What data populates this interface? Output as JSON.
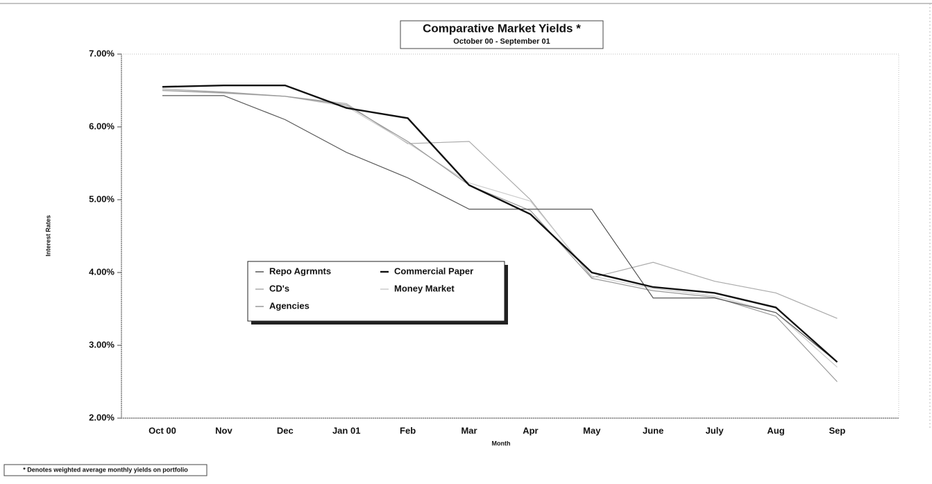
{
  "chart_data": {
    "type": "line",
    "title": "Comparative  Market Yields *",
    "subtitle": "October 00 - September 01",
    "y_label": "Interest Rates",
    "x_label": "Month",
    "footnote": "* Denotes weighted average monthly yields on portfolio",
    "categories": [
      "Oct 00",
      "Nov",
      "Dec",
      "Jan 01",
      "Feb",
      "Mar",
      "Apr",
      "May",
      "June",
      "July",
      "Aug",
      "Sep"
    ],
    "series": [
      {
        "name": "Repo Agrmnts",
        "color": "#555555",
        "values": [
          6.43,
          6.43,
          6.1,
          5.65,
          5.3,
          4.87,
          4.87,
          4.87,
          3.65,
          3.65,
          3.45,
          2.77
        ]
      },
      {
        "name": "Commercial Paper",
        "color": "#111111",
        "values": [
          6.55,
          6.57,
          6.57,
          6.26,
          6.12,
          5.2,
          4.8,
          4.0,
          3.8,
          3.72,
          3.52,
          2.77
        ]
      },
      {
        "name": "CD's",
        "color": "#aaaaaa",
        "values": [
          6.52,
          6.48,
          6.42,
          6.32,
          5.77,
          5.8,
          5.0,
          3.93,
          4.14,
          3.88,
          3.72,
          3.37
        ]
      },
      {
        "name": "Money Market",
        "color": "#cccccc",
        "values": [
          6.5,
          6.46,
          6.42,
          6.28,
          5.78,
          5.23,
          4.98,
          3.95,
          3.78,
          3.68,
          3.45,
          2.7
        ]
      },
      {
        "name": "Agencies",
        "color": "#999999",
        "values": [
          6.5,
          6.47,
          6.42,
          6.3,
          5.8,
          5.2,
          4.85,
          3.92,
          3.75,
          3.66,
          3.4,
          2.5
        ]
      }
    ],
    "ylim": [
      2,
      7
    ],
    "yticks": [
      {
        "value": 2,
        "label": "2.00%"
      },
      {
        "value": 3,
        "label": "3.00%"
      },
      {
        "value": 4,
        "label": "4.00%"
      },
      {
        "value": 5,
        "label": "5.00%"
      },
      {
        "value": 6,
        "label": "6.00%"
      },
      {
        "value": 7,
        "label": "7.00%"
      }
    ]
  }
}
